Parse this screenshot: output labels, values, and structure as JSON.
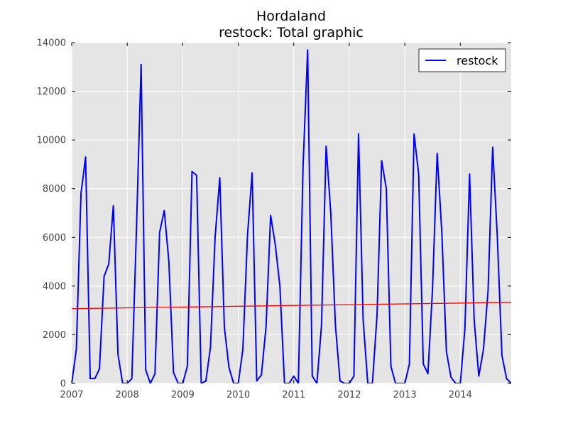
{
  "chart_data": {
    "type": "line",
    "title": "Hordaland",
    "subtitle": "restock: Total graphic",
    "xlabel": "",
    "ylabel": "",
    "xlim": [
      2007.0,
      2014.917
    ],
    "ylim": [
      0,
      14000
    ],
    "x_ticks": [
      "2007",
      "2008",
      "2009",
      "2010",
      "2011",
      "2012",
      "2013",
      "2014"
    ],
    "y_ticks": [
      "0",
      "2000",
      "4000",
      "6000",
      "8000",
      "10000",
      "12000",
      "14000"
    ],
    "grid": true,
    "background": "#e5e5e5",
    "legend_position": "top-right",
    "series": [
      {
        "name": "restock",
        "color": "#0000ff",
        "x": [
          2007.0,
          2007.083,
          2007.167,
          2007.25,
          2007.333,
          2007.417,
          2007.5,
          2007.583,
          2007.667,
          2007.75,
          2007.833,
          2007.917,
          2008.0,
          2008.083,
          2008.167,
          2008.25,
          2008.333,
          2008.417,
          2008.5,
          2008.583,
          2008.667,
          2008.75,
          2008.833,
          2008.917,
          2009.0,
          2009.083,
          2009.167,
          2009.25,
          2009.333,
          2009.417,
          2009.5,
          2009.583,
          2009.667,
          2009.75,
          2009.833,
          2009.917,
          2010.0,
          2010.083,
          2010.167,
          2010.25,
          2010.333,
          2010.417,
          2010.5,
          2010.583,
          2010.667,
          2010.75,
          2010.833,
          2010.917,
          2011.0,
          2011.083,
          2011.167,
          2011.25,
          2011.333,
          2011.417,
          2011.5,
          2011.583,
          2011.667,
          2011.75,
          2011.833,
          2011.917,
          2012.0,
          2012.083,
          2012.167,
          2012.25,
          2012.333,
          2012.417,
          2012.5,
          2012.583,
          2012.667,
          2012.75,
          2012.833,
          2012.917,
          2013.0,
          2013.083,
          2013.167,
          2013.25,
          2013.333,
          2013.417,
          2013.5,
          2013.583,
          2013.667,
          2013.75,
          2013.833,
          2013.917,
          2014.0,
          2014.083,
          2014.167,
          2014.25,
          2014.333,
          2014.417,
          2014.5,
          2014.583,
          2014.667,
          2014.75,
          2014.833,
          2014.917
        ],
        "values": [
          0,
          1400,
          7800,
          9300,
          200,
          200,
          600,
          4400,
          4900,
          7300,
          1200,
          0,
          0,
          200,
          6400,
          13100,
          550,
          0,
          400,
          6200,
          7100,
          5000,
          450,
          0,
          0,
          700,
          8700,
          8550,
          0,
          100,
          1500,
          6000,
          8450,
          2300,
          650,
          0,
          0,
          1400,
          6100,
          8650,
          100,
          350,
          2300,
          6900,
          5700,
          4000,
          0,
          0,
          300,
          0,
          8900,
          13700,
          300,
          0,
          2400,
          9750,
          7000,
          2400,
          100,
          0,
          0,
          300,
          10250,
          2600,
          0,
          0,
          2800,
          9150,
          8000,
          700,
          0,
          0,
          0,
          800,
          10250,
          8600,
          800,
          400,
          3900,
          9450,
          6200,
          1300,
          250,
          0,
          0,
          2250,
          8600,
          2600,
          300,
          1400,
          3800,
          9700,
          6000,
          1150,
          200,
          0
        ]
      },
      {
        "name": "",
        "color": "#ff0000",
        "x": [
          2007.0,
          2014.917
        ],
        "values": [
          3070,
          3330
        ]
      }
    ]
  }
}
